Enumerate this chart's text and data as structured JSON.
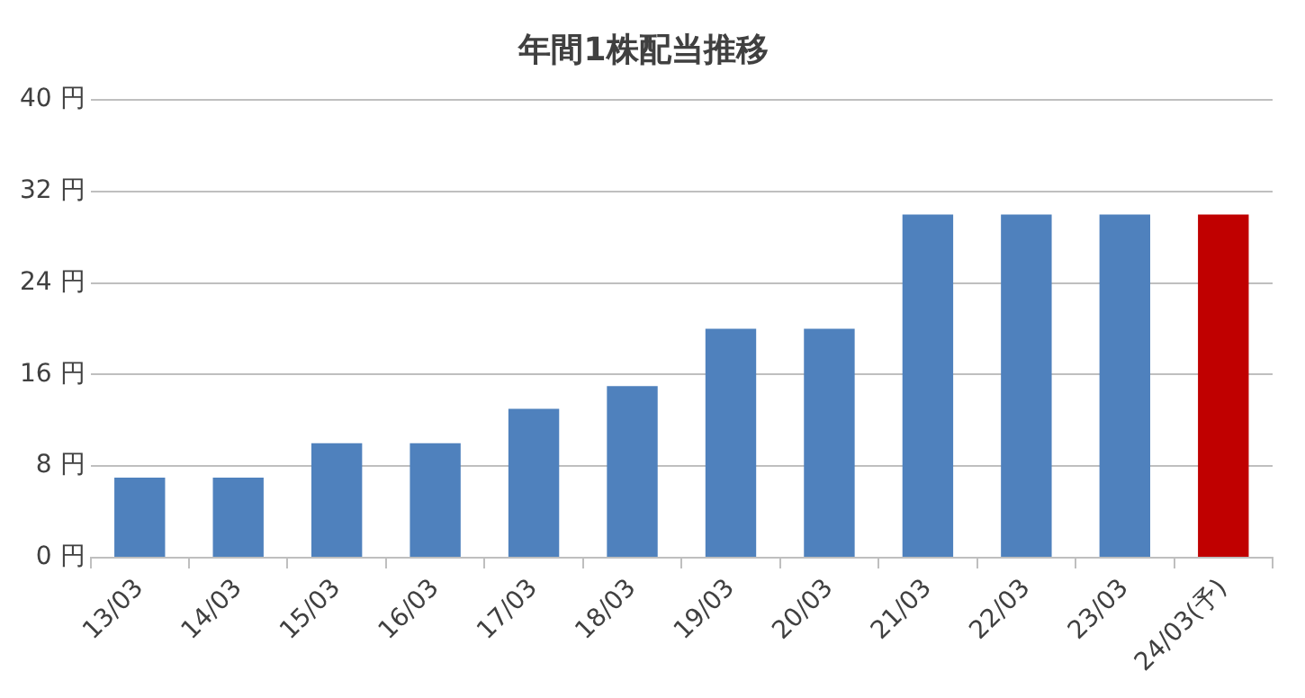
{
  "chart_data": {
    "type": "bar",
    "title": "年間1株配当推移",
    "categories": [
      "13/03",
      "14/03",
      "15/03",
      "16/03",
      "17/03",
      "18/03",
      "19/03",
      "20/03",
      "21/03",
      "22/03",
      "23/03",
      "24/03(予)"
    ],
    "values": [
      7,
      7,
      10,
      10,
      13,
      15,
      20,
      20,
      30,
      30,
      30,
      30
    ],
    "colors": [
      "#4f81bd",
      "#4f81bd",
      "#4f81bd",
      "#4f81bd",
      "#4f81bd",
      "#4f81bd",
      "#4f81bd",
      "#4f81bd",
      "#4f81bd",
      "#4f81bd",
      "#4f81bd",
      "#c00000"
    ],
    "ylim": [
      0,
      40
    ],
    "yticks": [
      {
        "value": 0,
        "label": "0 円"
      },
      {
        "value": 8,
        "label": "8 円"
      },
      {
        "value": 16,
        "label": "16 円"
      },
      {
        "value": 24,
        "label": "24 円"
      },
      {
        "value": 32,
        "label": "32 円"
      },
      {
        "value": 40,
        "label": "40 円"
      }
    ],
    "grid": "y",
    "legend": false
  }
}
